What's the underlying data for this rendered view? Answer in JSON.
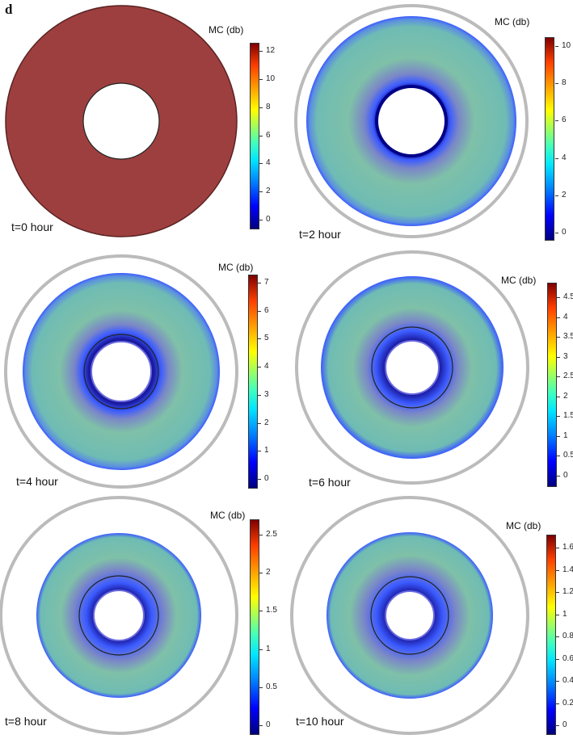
{
  "figure": {
    "panel_letter": "d"
  },
  "panels": [
    {
      "time": "t=0 hour",
      "legend_title": "MC (db)",
      "ticks": [
        "0",
        "2",
        "4",
        "6",
        "8",
        "10",
        "12"
      ],
      "fill": "uniform"
    },
    {
      "time": "t=2 hour",
      "legend_title": "MC (db)",
      "ticks": [
        "0",
        "2",
        "4",
        "6",
        "8",
        "10"
      ],
      "fill": "gradient"
    },
    {
      "time": "t=4 hour",
      "legend_title": "MC (db)",
      "ticks": [
        "0",
        "1",
        "2",
        "3",
        "4",
        "5",
        "6",
        "7"
      ],
      "fill": "gradient"
    },
    {
      "time": "t=6 hour",
      "legend_title": "MC (db)",
      "ticks": [
        "0",
        "0.5",
        "1",
        "1.5",
        "2",
        "2.5",
        "3",
        "3.5",
        "4",
        "4.5"
      ],
      "fill": "gradient"
    },
    {
      "time": "t=8 hour",
      "legend_title": "MC (db)",
      "ticks": [
        "0",
        "0.5",
        "1",
        "1.5",
        "2",
        "2.5"
      ],
      "fill": "gradient"
    },
    {
      "time": "t=10 hour",
      "legend_title": "MC (db)",
      "ticks": [
        "0",
        "0.2",
        "0.4",
        "0.6",
        "0.8",
        "1",
        "1.2",
        "1.4",
        "1.6"
      ],
      "fill": "gradient"
    }
  ],
  "colors": {
    "uniform_fill": "#9e3f3f",
    "blue_edge": "#3b5bff",
    "teal_fill": "#5fbfb2",
    "dark_blue": "#1a1aa0"
  }
}
